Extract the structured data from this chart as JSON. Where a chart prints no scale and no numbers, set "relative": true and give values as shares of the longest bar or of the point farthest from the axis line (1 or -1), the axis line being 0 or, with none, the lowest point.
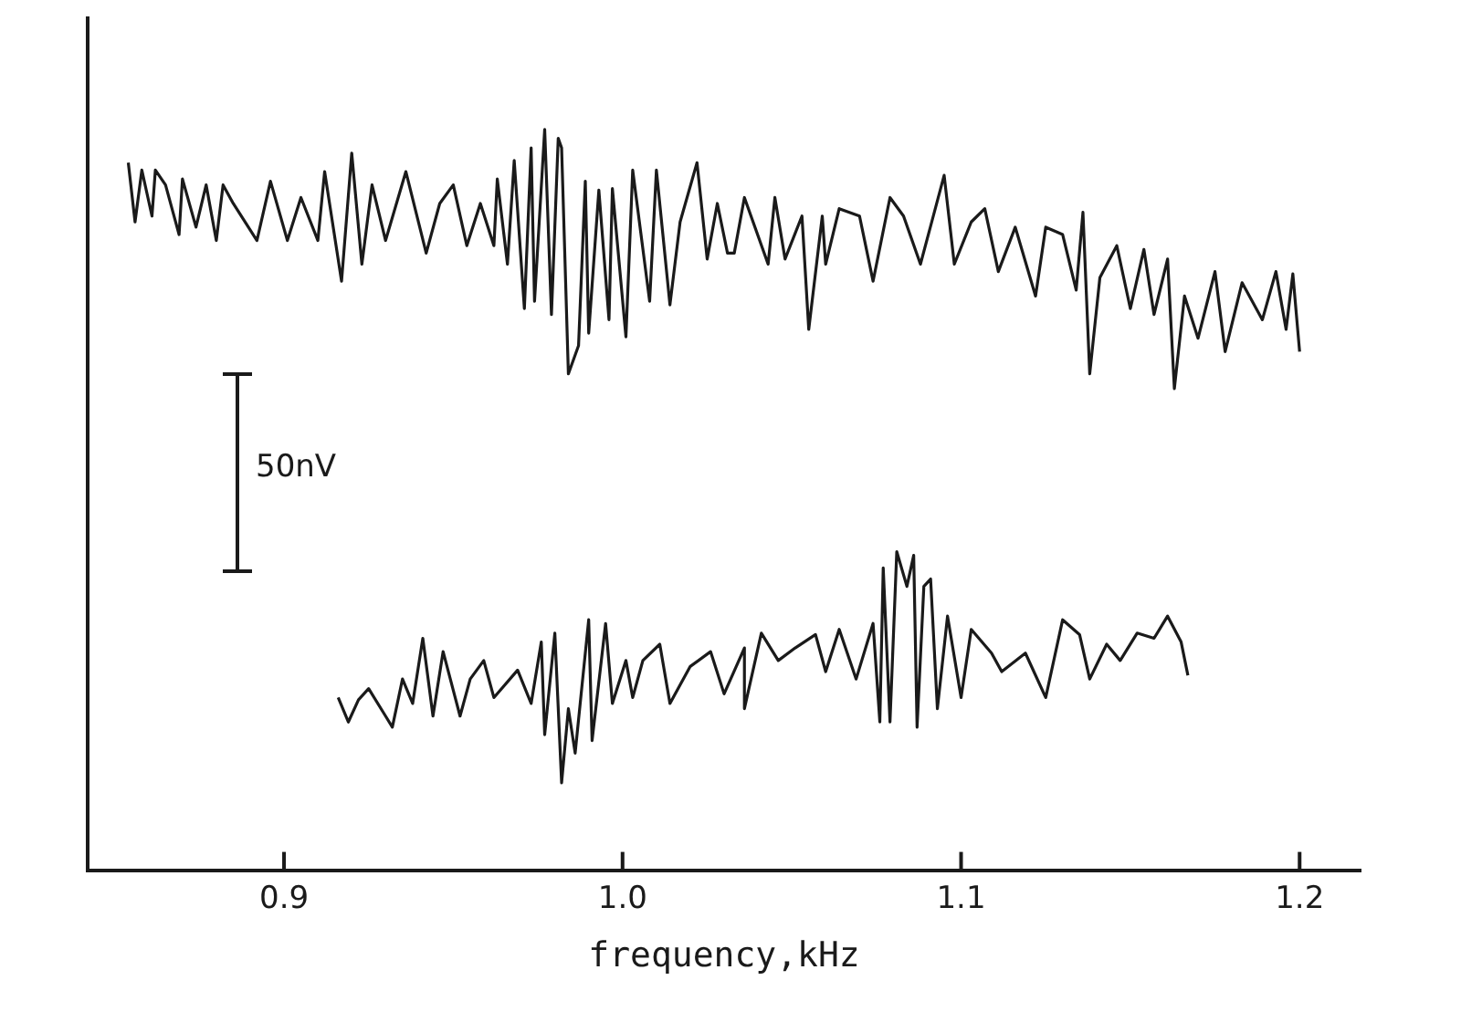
{
  "chart_data": {
    "type": "line",
    "xlabel": "frequency,kHz",
    "relative": true,
    "marker": "none",
    "line_style": "solid",
    "xlim": [
      0.842,
      1.218
    ],
    "xticks": [
      0.9,
      {
        "value": 1,
        "label": "1.0"
      },
      1.1,
      1.2
    ],
    "annotations": [
      "50nV"
    ],
    "series": [
      {
        "color": "#1a1a1a",
        "x": [
          0.854,
          0.856,
          0.858,
          0.861,
          0.862,
          0.865,
          0.869,
          0.87,
          0.874,
          0.877,
          0.88,
          0.882,
          0.885,
          0.892,
          0.896,
          0.901,
          0.905,
          0.91,
          0.912,
          0.917,
          0.92,
          0.923,
          0.926,
          0.93,
          0.936,
          0.942,
          0.946,
          0.95,
          0.954,
          0.958,
          0.962,
          0.963,
          0.966,
          0.968,
          0.971,
          0.973,
          0.974,
          0.977,
          0.979,
          0.981,
          0.982,
          0.984,
          0.987,
          0.989,
          0.99,
          0.993,
          0.996,
          0.997,
          1.001,
          1.003,
          1.008,
          1.01,
          1.014,
          1.017,
          1.022,
          1.025,
          1.028,
          1.031,
          1.033,
          1.036,
          1.043,
          1.045,
          1.048,
          1.053,
          1.055,
          1.059,
          1.06,
          1.064,
          1.07,
          1.074,
          1.079,
          1.083,
          1.088,
          1.095,
          1.098,
          1.103,
          1.107,
          1.111,
          1.116,
          1.122,
          1.125,
          1.13,
          1.134,
          1.136,
          1.138,
          1.141,
          1.146,
          1.15,
          1.154,
          1.157,
          1.161,
          1.163,
          1.166,
          1.17,
          1.175,
          1.178,
          1.183,
          1.189,
          1.193,
          1.196,
          1.198,
          1.2
        ],
        "values": [
          0.955,
          0.875,
          0.945,
          0.883,
          0.945,
          0.925,
          0.858,
          0.933,
          0.868,
          0.925,
          0.85,
          0.925,
          0.9,
          0.85,
          0.93,
          0.85,
          0.908,
          0.85,
          0.943,
          0.795,
          0.968,
          0.818,
          0.925,
          0.85,
          0.943,
          0.833,
          0.9,
          0.925,
          0.843,
          0.9,
          0.843,
          0.933,
          0.818,
          0.958,
          0.758,
          0.975,
          0.768,
          1,
          0.75,
          0.988,
          0.975,
          0.67,
          0.708,
          0.93,
          0.725,
          0.918,
          0.743,
          0.92,
          0.72,
          0.945,
          0.768,
          0.945,
          0.763,
          0.875,
          0.955,
          0.825,
          0.9,
          0.833,
          0.833,
          0.908,
          0.818,
          0.908,
          0.825,
          0.883,
          0.73,
          0.883,
          0.818,
          0.893,
          0.883,
          0.795,
          0.908,
          0.883,
          0.818,
          0.938,
          0.818,
          0.875,
          0.893,
          0.808,
          0.868,
          0.775,
          0.868,
          0.858,
          0.783,
          0.888,
          0.67,
          0.8,
          0.843,
          0.758,
          0.838,
          0.75,
          0.825,
          0.65,
          0.775,
          0.718,
          0.808,
          0.7,
          0.793,
          0.743,
          0.808,
          0.73,
          0.805,
          0.7
        ]
      },
      {
        "color": "#1a1a1a",
        "x": [
          0.916,
          0.919,
          0.922,
          0.925,
          0.93,
          0.932,
          0.935,
          0.938,
          0.941,
          0.944,
          0.947,
          0.952,
          0.955,
          0.959,
          0.962,
          0.969,
          0.973,
          0.976,
          0.977,
          0.98,
          0.982,
          0.984,
          0.986,
          0.99,
          0.991,
          0.995,
          0.997,
          1.001,
          1.003,
          1.006,
          1.011,
          1.014,
          1.02,
          1.026,
          1.03,
          1.036,
          1.036,
          1.041,
          1.046,
          1.051,
          1.057,
          1.06,
          1.064,
          1.069,
          1.074,
          1.076,
          1.077,
          1.079,
          1.081,
          1.084,
          1.086,
          1.087,
          1.089,
          1.091,
          1.093,
          1.096,
          1.1,
          1.103,
          1.109,
          1.112,
          1.119,
          1.125,
          1.13,
          1.135,
          1.138,
          1.143,
          1.147,
          1.152,
          1.157,
          1.161,
          1.165,
          1.167
        ],
        "values": [
          0.233,
          0.2,
          0.23,
          0.245,
          0.208,
          0.193,
          0.258,
          0.225,
          0.313,
          0.208,
          0.295,
          0.208,
          0.258,
          0.283,
          0.233,
          0.27,
          0.225,
          0.308,
          0.183,
          0.32,
          0.118,
          0.218,
          0.158,
          0.338,
          0.175,
          0.333,
          0.225,
          0.283,
          0.233,
          0.283,
          0.305,
          0.225,
          0.275,
          0.295,
          0.238,
          0.3,
          0.218,
          0.32,
          0.283,
          0.3,
          0.318,
          0.268,
          0.325,
          0.258,
          0.333,
          0.2,
          0.408,
          0.2,
          0.43,
          0.383,
          0.425,
          0.193,
          0.383,
          0.393,
          0.218,
          0.343,
          0.233,
          0.325,
          0.293,
          0.268,
          0.293,
          0.233,
          0.338,
          0.318,
          0.258,
          0.305,
          0.283,
          0.32,
          0.313,
          0.343,
          0.308,
          0.263
        ]
      }
    ]
  }
}
